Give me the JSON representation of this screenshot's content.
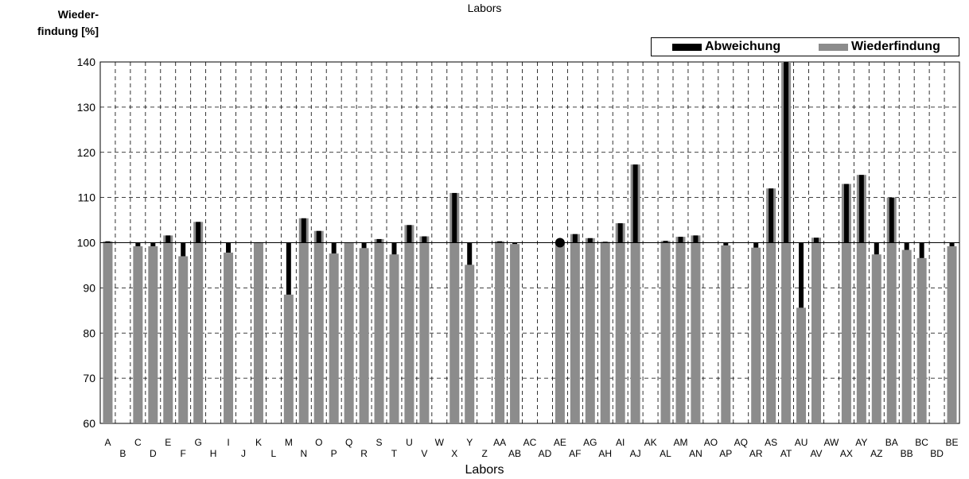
{
  "chart_data": {
    "type": "bar",
    "title": "Labors",
    "xlabel": "Labors",
    "ylabel_line1": "Wieder-",
    "ylabel_line2": "findung [%]",
    "ylim": [
      60,
      140
    ],
    "yticks": [
      60,
      70,
      80,
      90,
      100,
      110,
      120,
      130,
      140
    ],
    "reference": 100,
    "grid": true,
    "legend_position": "top-right",
    "colors": {
      "abweichung": "#000000",
      "wiederfindung": "#8c8c8c"
    },
    "categories": [
      "A",
      "B",
      "C",
      "D",
      "E",
      "F",
      "G",
      "H",
      "I",
      "J",
      "K",
      "L",
      "M",
      "N",
      "O",
      "P",
      "Q",
      "R",
      "S",
      "T",
      "U",
      "V",
      "W",
      "X",
      "Y",
      "Z",
      "AA",
      "AB",
      "AC",
      "AD",
      "AE",
      "AF",
      "AG",
      "AH",
      "AI",
      "AJ",
      "AK",
      "AL",
      "AM",
      "AN",
      "AO",
      "AP",
      "AQ",
      "AR",
      "AS",
      "AT",
      "AU",
      "AV",
      "AW",
      "AX",
      "AY",
      "AZ",
      "BA",
      "BB",
      "BC",
      "BD",
      "BE"
    ],
    "series": [
      {
        "name": "Abweichung",
        "values": [
          100.3,
          null,
          99.2,
          99.2,
          101.6,
          97.0,
          104.6,
          null,
          97.8,
          null,
          100.1,
          null,
          88.5,
          105.4,
          102.6,
          97.6,
          100.0,
          98.8,
          100.8,
          97.4,
          103.9,
          101.4,
          null,
          111.0,
          95.1,
          null,
          100.3,
          99.7,
          null,
          null,
          100.0,
          101.9,
          101.0,
          100.2,
          104.3,
          117.3,
          null,
          100.4,
          101.3,
          101.6,
          null,
          99.4,
          null,
          98.9,
          112.0,
          140,
          85.6,
          101.1,
          null,
          113.0,
          115.0,
          97.4,
          110.0,
          98.4,
          96.6,
          null,
          99.2
        ]
      },
      {
        "name": "Wiederfindung",
        "values": [
          100.3,
          null,
          99.2,
          99.2,
          101.6,
          97.0,
          104.6,
          null,
          97.8,
          null,
          100.1,
          null,
          88.5,
          105.4,
          102.6,
          97.6,
          100.0,
          98.8,
          100.8,
          97.4,
          103.9,
          101.4,
          null,
          111.0,
          95.1,
          null,
          100.3,
          99.7,
          null,
          null,
          100.0,
          101.9,
          101.0,
          100.2,
          104.3,
          117.3,
          null,
          100.4,
          101.3,
          101.6,
          null,
          99.4,
          null,
          98.9,
          112.0,
          140,
          85.6,
          101.1,
          null,
          113.0,
          115.0,
          97.4,
          110.0,
          98.4,
          96.6,
          null,
          99.2
        ]
      }
    ],
    "markers": [
      {
        "category": "AE",
        "value": 100
      }
    ]
  }
}
